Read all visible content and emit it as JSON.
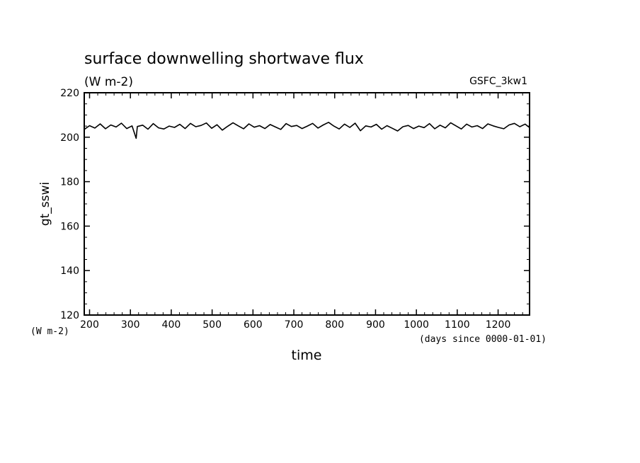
{
  "chart_data": {
    "type": "line",
    "title": "surface downwelling shortwave flux",
    "subtitle": "(W m-2)",
    "label_right": "GSFC_3kw1",
    "xlabel": "time",
    "x_units": "(days since 0000-01-01)",
    "ylabel": "gt_sswi",
    "y_units": "(W m-2)",
    "xlim": [
      187,
      1277
    ],
    "ylim": [
      120,
      220
    ],
    "x_ticks": [
      "200",
      "300",
      "400",
      "500",
      "600",
      "700",
      "800",
      "900",
      "1000",
      "1100",
      "1200"
    ],
    "y_ticks": [
      "120",
      "140",
      "160",
      "180",
      "200",
      "220"
    ],
    "grid": false,
    "series": [
      {
        "x": [
          187,
          200,
          213,
          226,
          239,
          252,
          265,
          278,
          291,
          304,
          314,
          317,
          330,
          343,
          356,
          369,
          382,
          395,
          408,
          421,
          434,
          447,
          460,
          473,
          486,
          499,
          512,
          525,
          538,
          551,
          564,
          577,
          590,
          603,
          616,
          629,
          642,
          655,
          668,
          681,
          694,
          707,
          720,
          733,
          746,
          759,
          772,
          785,
          798,
          811,
          824,
          837,
          850,
          863,
          876,
          889,
          902,
          915,
          928,
          941,
          954,
          967,
          980,
          993,
          1006,
          1019,
          1032,
          1045,
          1058,
          1071,
          1084,
          1097,
          1110,
          1123,
          1136,
          1149,
          1162,
          1175,
          1188,
          1201,
          1214,
          1227,
          1240,
          1253,
          1266,
          1277
        ],
        "y": [
          203.5,
          205.2,
          204.1,
          206.0,
          203.8,
          205.5,
          204.6,
          206.3,
          203.9,
          205.1,
          199.5,
          204.8,
          205.4,
          203.6,
          206.1,
          204.2,
          203.7,
          205.0,
          204.4,
          205.8,
          203.9,
          206.2,
          204.7,
          205.3,
          206.4,
          204.0,
          205.6,
          203.2,
          204.9,
          206.5,
          205.1,
          203.8,
          206.0,
          204.5,
          205.2,
          203.9,
          205.7,
          204.6,
          203.5,
          206.1,
          204.8,
          205.3,
          203.9,
          205.0,
          206.2,
          204.1,
          205.5,
          206.7,
          205.0,
          203.7,
          205.9,
          204.4,
          206.3,
          202.9,
          205.1,
          204.6,
          205.8,
          203.6,
          205.2,
          204.0,
          202.8,
          204.7,
          205.3,
          203.9,
          205.0,
          204.3,
          206.1,
          203.8,
          205.4,
          204.2,
          206.5,
          205.1,
          203.7,
          205.9,
          204.6,
          205.2,
          203.9,
          206.0,
          205.1,
          204.4,
          203.8,
          205.5,
          206.2,
          204.7,
          205.9,
          204.3
        ]
      }
    ]
  }
}
